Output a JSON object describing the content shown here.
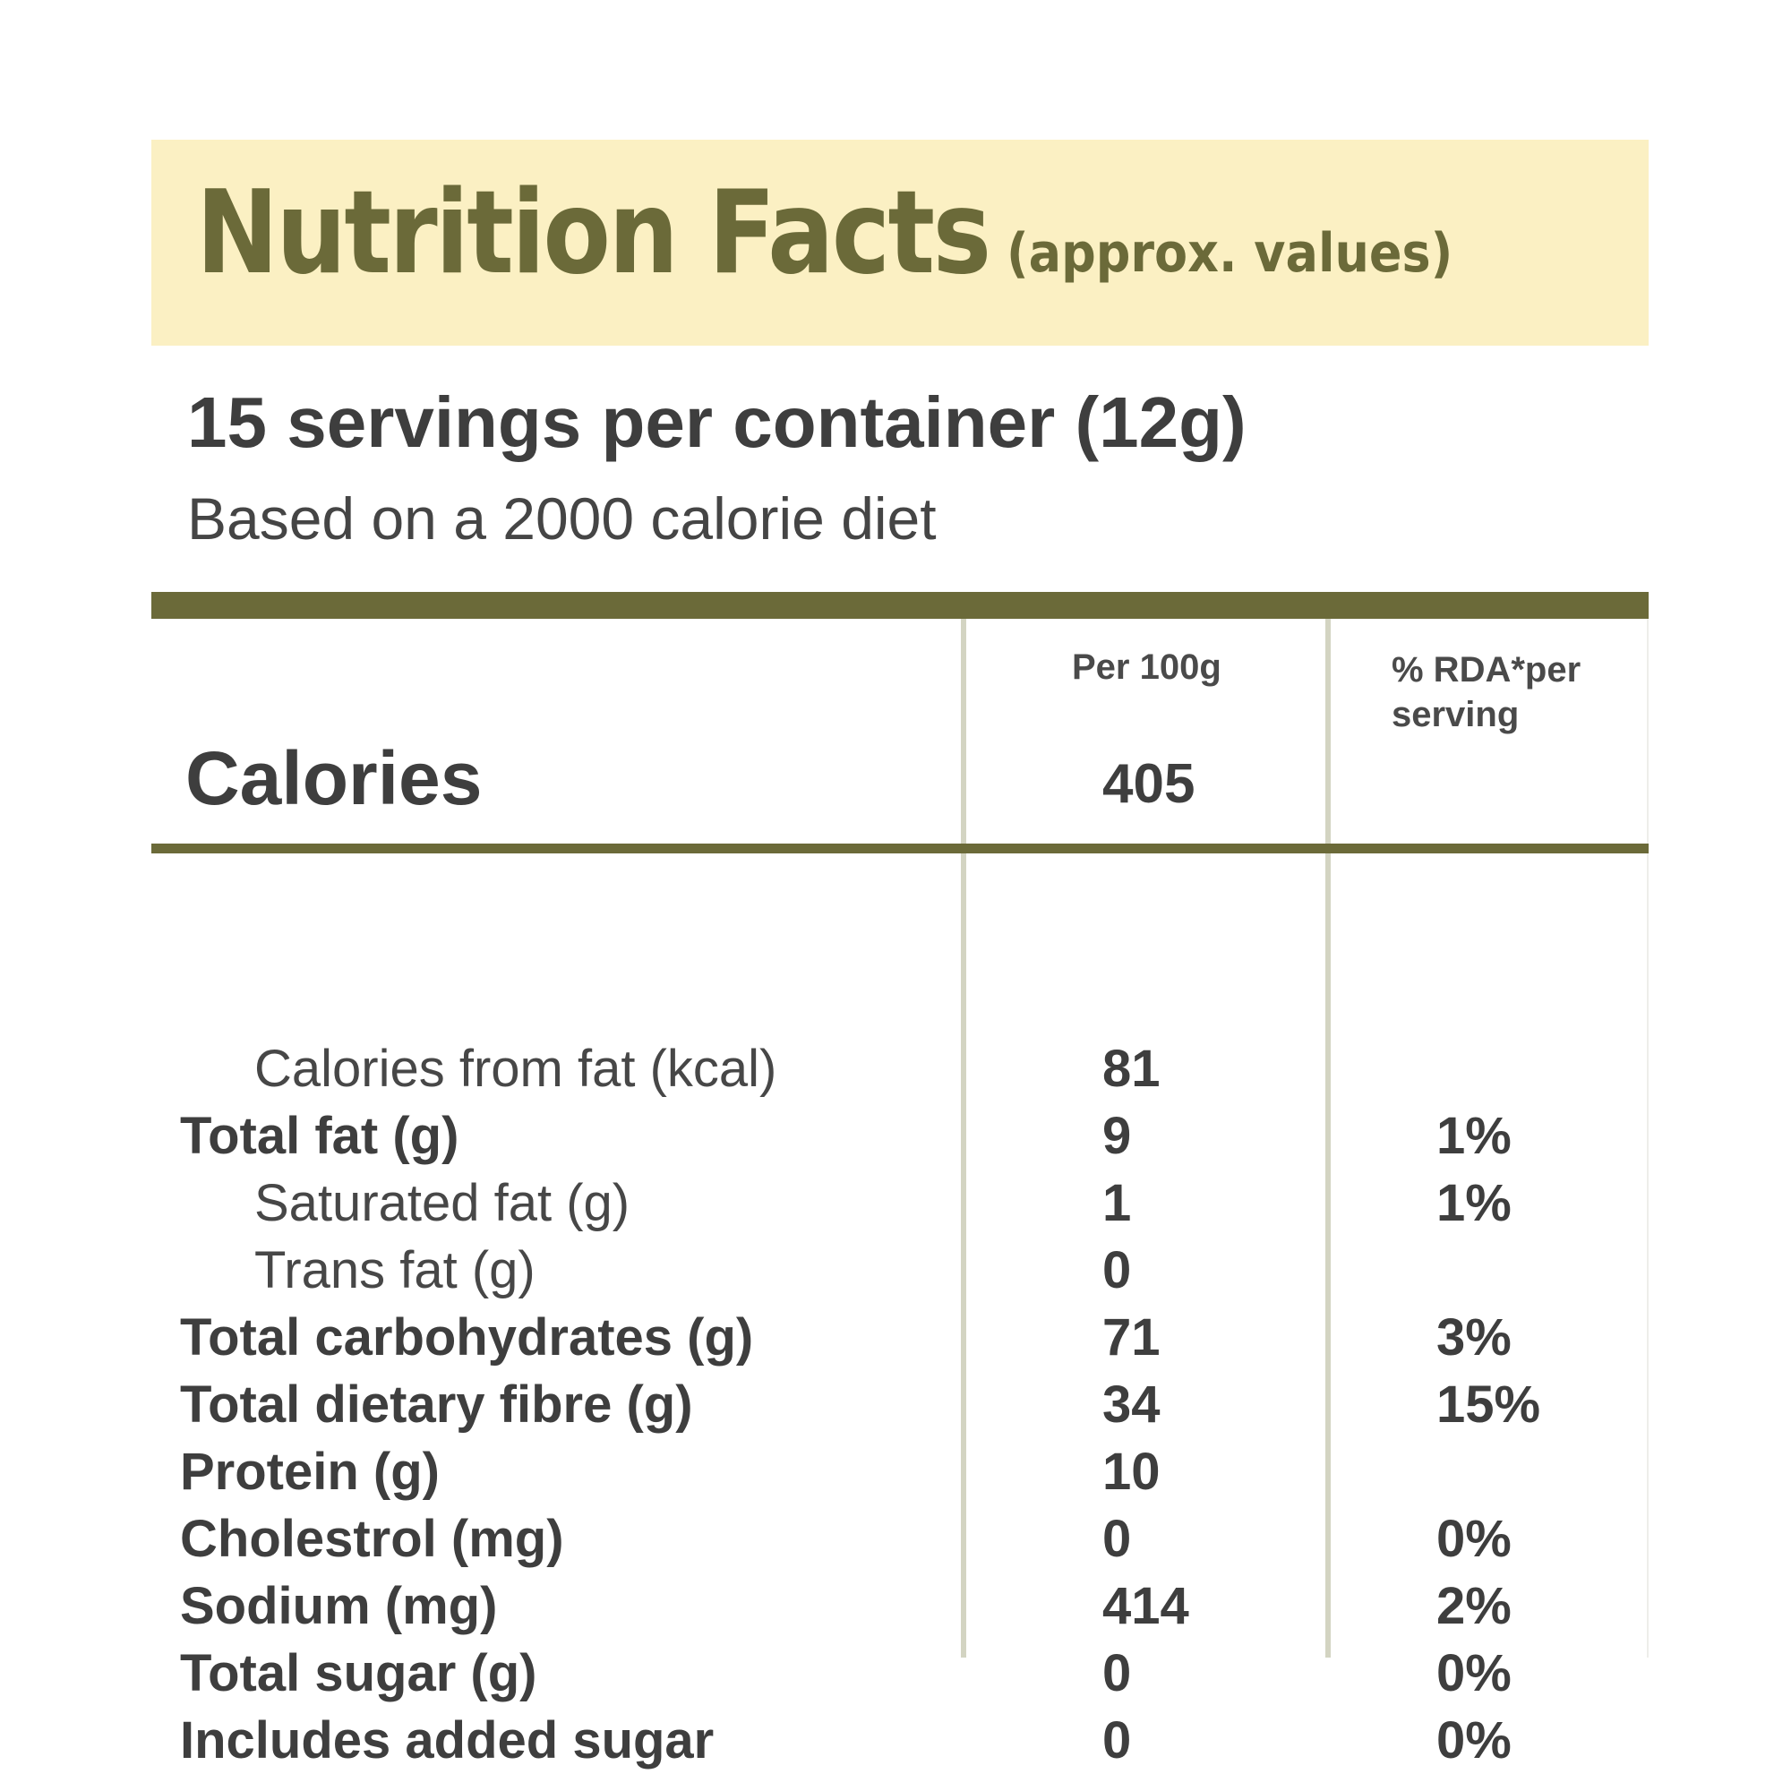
{
  "header": {
    "title": "Nutrition Facts",
    "subtitle": "(approx. values)"
  },
  "serving": {
    "servings_line": "15 servings per container (12g)",
    "diet_line": "Based on a 2000 calorie diet"
  },
  "columns": {
    "per_100g": "Per 100g",
    "rda": "% RDA*per serving"
  },
  "calories": {
    "label": "Calories",
    "value": "405"
  },
  "nutrients": [
    {
      "label": "Calories from fat (kcal)",
      "value": "81",
      "rda": ""
    },
    {
      "label": "Total fat (g)",
      "value": "9",
      "rda": "1%"
    },
    {
      "label": "Saturated fat (g)",
      "value": "1",
      "rda": "1%"
    },
    {
      "label": "Trans fat (g)",
      "value": "0",
      "rda": ""
    },
    {
      "label": "Total carbohydrates (g)",
      "value": "71",
      "rda": "3%"
    },
    {
      "label": "Total dietary fibre (g)",
      "value": "34",
      "rda": "15%"
    },
    {
      "label": "Protein (g)",
      "value": "10",
      "rda": ""
    },
    {
      "label": "Cholestrol (mg)",
      "value": "0",
      "rda": "0%"
    },
    {
      "label": "Sodium (mg)",
      "value": "414",
      "rda": "2%"
    },
    {
      "label": "Total sugar (g)",
      "value": "0",
      "rda": "0%"
    },
    {
      "label": "Includes added sugar",
      "value": "0",
      "rda": "0%"
    }
  ],
  "colors": {
    "title_band": "#fbf0c3",
    "accent_olive": "#6b6a39",
    "column_divider": "#d3d4c2",
    "text": "#3e3e3e"
  }
}
